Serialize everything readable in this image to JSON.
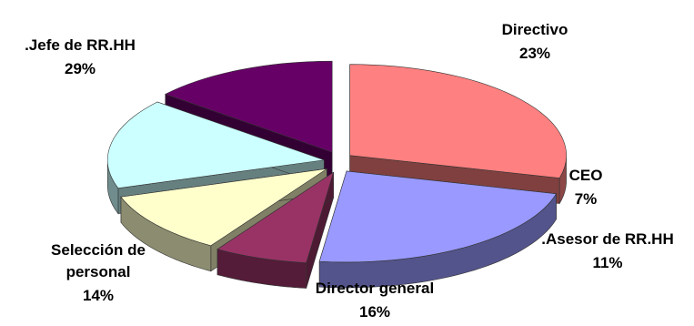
{
  "chart_data": {
    "type": "pie",
    "style": "3d-exploded",
    "legend": "none",
    "categories": [
      ".Jefe de RR.HH",
      "Directivo",
      "CEO",
      ".Asesor de RR.HH",
      "Director general",
      "Selección de personal"
    ],
    "values": [
      29,
      23,
      7,
      11,
      16,
      14
    ],
    "value_labels": [
      "29%",
      "23%",
      "7%",
      "11%",
      "16%",
      "14%"
    ],
    "colors": [
      "#ff8080",
      "#9999ff",
      "#993366",
      "#ffffcc",
      "#ccffff",
      "#660066"
    ]
  }
}
